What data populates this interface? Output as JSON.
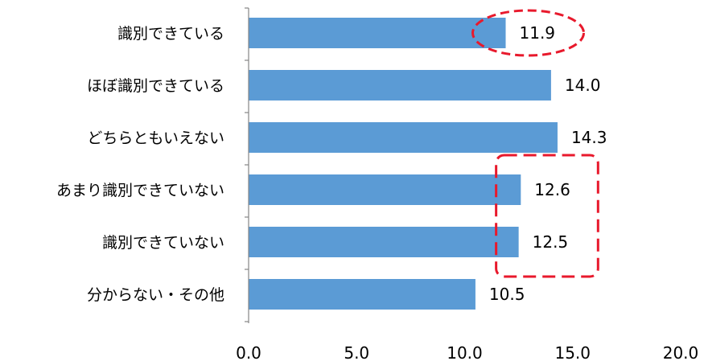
{
  "chart_data": {
    "type": "bar",
    "orientation": "horizontal",
    "categories": [
      "識別できている",
      "ほぼ識別できている",
      "どちらともいえない",
      "あまり識別できていない",
      "識別できていない",
      "分からない・その他"
    ],
    "values": [
      11.9,
      14.0,
      14.3,
      12.6,
      12.5,
      10.5
    ],
    "value_labels": [
      "11.9",
      "14.0",
      "14.3",
      "12.6",
      "12.5",
      "10.5"
    ],
    "xlim": [
      0,
      20
    ],
    "xticks": [
      "0.0",
      "5.0",
      "10.0",
      "15.0",
      "20.0"
    ],
    "grid": false,
    "title": "",
    "xlabel": "",
    "ylabel": "",
    "colors": {
      "bar": "#5b9bd5",
      "highlight": "#e8192c",
      "axis": "#868686"
    },
    "annotations": [
      {
        "shape": "ellipse",
        "style": "dashed",
        "categories": [
          "識別できている"
        ]
      },
      {
        "shape": "rounded-rect",
        "style": "dashed",
        "categories": [
          "あまり識別できていない",
          "識別できていない"
        ]
      }
    ]
  }
}
